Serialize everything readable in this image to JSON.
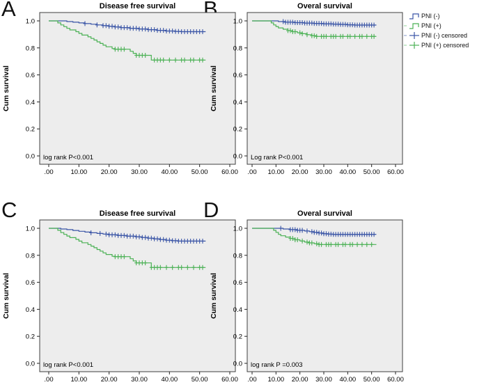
{
  "figure": {
    "colors": {
      "pni_neg": "#3a55a6",
      "pni_pos": "#4bb155",
      "plot_bg": "#ededed",
      "plot_border": "#3f3f3f",
      "text": "#000000"
    },
    "legend": {
      "position": "top-right-outside",
      "items": [
        {
          "label": "PNI (-)",
          "symbol": "step",
          "color_key": "pni_neg",
          "lead_dash": false
        },
        {
          "label": "PNI (+)",
          "symbol": "step",
          "color_key": "pni_pos",
          "lead_dash": true
        },
        {
          "label": "PNI (-) censored",
          "symbol": "plus",
          "color_key": "pni_neg",
          "lead_dash": true
        },
        {
          "label": "PNI (+) censored",
          "symbol": "plus",
          "color_key": "pni_pos",
          "lead_dash": true
        }
      ]
    }
  },
  "chart_data": [
    {
      "type": "line",
      "subtype": "kaplan-meier-step",
      "panel": "A",
      "title": "Disease free survival",
      "p_label": "log rank P<0.001",
      "xlabel": "",
      "ylabel": "Cum survival",
      "xlim": [
        -3,
        62
      ],
      "ylim": [
        -0.06,
        1.06
      ],
      "x_ticks": [
        0,
        10,
        20,
        30,
        40,
        50,
        60
      ],
      "x_tick_labels": [
        ".00",
        "10.00",
        "20.00",
        "30.00",
        "40.00",
        "50.00",
        "60.00"
      ],
      "y_ticks": [
        0,
        0.2,
        0.4,
        0.6,
        0.8,
        1.0
      ],
      "y_tick_labels": [
        "0.0",
        "0.2",
        "0.4",
        "0.6",
        "0.8",
        "1.0"
      ],
      "grid": false,
      "series": [
        {
          "name": "PNI (-)",
          "color_key": "pni_neg",
          "steps": [
            [
              0,
              1
            ],
            [
              4,
              1
            ],
            [
              6,
              0.995
            ],
            [
              8,
              0.99
            ],
            [
              10,
              0.985
            ],
            [
              12,
              0.98
            ],
            [
              14,
              0.975
            ],
            [
              16,
              0.97
            ],
            [
              18,
              0.965
            ],
            [
              20,
              0.96
            ],
            [
              22,
              0.955
            ],
            [
              24,
              0.95
            ],
            [
              27,
              0.945
            ],
            [
              30,
              0.94
            ],
            [
              33,
              0.935
            ],
            [
              36,
              0.93
            ],
            [
              39,
              0.925
            ],
            [
              42,
              0.922
            ],
            [
              44,
              0.92
            ],
            [
              52,
              0.92
            ]
          ],
          "censored_x": [
            12,
            16,
            18,
            19,
            20,
            21,
            22,
            23,
            24,
            25,
            26,
            27,
            28,
            29,
            30,
            31,
            32,
            33,
            34,
            35,
            36,
            37,
            38,
            39,
            40,
            41,
            42,
            43,
            44,
            45,
            46,
            47,
            48,
            49,
            50,
            51
          ]
        },
        {
          "name": "PNI (+)",
          "color_key": "pni_pos",
          "steps": [
            [
              0,
              1
            ],
            [
              2,
              1
            ],
            [
              3,
              0.985
            ],
            [
              4,
              0.97
            ],
            [
              5,
              0.957
            ],
            [
              6,
              0.945
            ],
            [
              7,
              0.933
            ],
            [
              9,
              0.92
            ],
            [
              10,
              0.907
            ],
            [
              11,
              0.895
            ],
            [
              13,
              0.882
            ],
            [
              14,
              0.87
            ],
            [
              15,
              0.858
            ],
            [
              16,
              0.845
            ],
            [
              17,
              0.833
            ],
            [
              18,
              0.82
            ],
            [
              19,
              0.808
            ],
            [
              21,
              0.795
            ],
            [
              22,
              0.79
            ],
            [
              26,
              0.79
            ],
            [
              27,
              0.775
            ],
            [
              28,
              0.76
            ],
            [
              29,
              0.745
            ],
            [
              33,
              0.745
            ],
            [
              34,
              0.71
            ],
            [
              52,
              0.71
            ]
          ],
          "censored_x": [
            22,
            23,
            24,
            25,
            29,
            30,
            31,
            32,
            35,
            36,
            37,
            38,
            40,
            42,
            44,
            45,
            47,
            48,
            50,
            51
          ]
        }
      ]
    },
    {
      "type": "line",
      "subtype": "kaplan-meier-step",
      "panel": "B",
      "title": "Overal survival",
      "p_label": "Log rank P<0.001",
      "xlabel": "",
      "ylabel": "Cum survival",
      "xlim": [
        -3,
        62
      ],
      "ylim": [
        -0.06,
        1.06
      ],
      "x_ticks": [
        0,
        10,
        20,
        30,
        40,
        50,
        60
      ],
      "x_tick_labels": [
        ".00",
        "10.00",
        "20.00",
        "30.00",
        "40.00",
        "50.00",
        "60.00"
      ],
      "y_ticks": [
        0,
        0.2,
        0.4,
        0.6,
        0.8,
        1.0
      ],
      "y_tick_labels": [
        "0.0",
        "0.2",
        "0.4",
        "0.6",
        "0.8",
        "1.0"
      ],
      "grid": false,
      "series": [
        {
          "name": "PNI (-)",
          "color_key": "pni_neg",
          "steps": [
            [
              0,
              1
            ],
            [
              9,
              1
            ],
            [
              11,
              0.995
            ],
            [
              14,
              0.99
            ],
            [
              18,
              0.987
            ],
            [
              22,
              0.984
            ],
            [
              26,
              0.981
            ],
            [
              30,
              0.978
            ],
            [
              34,
              0.976
            ],
            [
              37,
              0.974
            ],
            [
              40,
              0.971
            ],
            [
              43,
              0.969
            ],
            [
              52,
              0.969
            ]
          ],
          "censored_x": [
            13,
            14,
            15,
            16,
            17,
            18,
            19,
            20,
            21,
            22,
            23,
            24,
            25,
            26,
            27,
            28,
            29,
            30,
            31,
            32,
            33,
            34,
            35,
            36,
            37,
            38,
            39,
            40,
            41,
            42,
            43,
            44,
            45,
            46,
            47,
            48,
            49,
            50,
            51
          ]
        },
        {
          "name": "PNI (+)",
          "color_key": "pni_pos",
          "steps": [
            [
              0,
              1
            ],
            [
              7,
              1
            ],
            [
              8,
              0.985
            ],
            [
              9,
              0.97
            ],
            [
              10,
              0.958
            ],
            [
              11,
              0.948
            ],
            [
              13,
              0.938
            ],
            [
              15,
              0.928
            ],
            [
              17,
              0.92
            ],
            [
              19,
              0.912
            ],
            [
              21,
              0.905
            ],
            [
              23,
              0.898
            ],
            [
              25,
              0.89
            ],
            [
              27,
              0.885
            ],
            [
              52,
              0.885
            ]
          ],
          "censored_x": [
            15,
            16,
            17,
            18,
            20,
            21,
            23,
            25,
            26,
            27,
            29,
            30,
            31,
            33,
            34,
            35,
            37,
            38,
            40,
            41,
            43,
            45,
            46,
            48,
            50,
            51
          ]
        }
      ]
    },
    {
      "type": "line",
      "subtype": "kaplan-meier-step",
      "panel": "C",
      "title": "Disease free survival",
      "p_label": "log rank P<0.001",
      "xlabel": "",
      "ylabel": "Cum survival",
      "xlim": [
        -3,
        62
      ],
      "ylim": [
        -0.06,
        1.06
      ],
      "x_ticks": [
        0,
        10,
        20,
        30,
        40,
        50,
        60
      ],
      "x_tick_labels": [
        ".00",
        "10.00",
        "20.00",
        "30.00",
        "40.00",
        "50.00",
        "60.00"
      ],
      "y_ticks": [
        0,
        0.2,
        0.4,
        0.6,
        0.8,
        1.0
      ],
      "y_tick_labels": [
        "0.0",
        "0.2",
        "0.4",
        "0.6",
        "0.8",
        "1.0"
      ],
      "grid": false,
      "series": [
        {
          "name": "PNI (-)",
          "color_key": "pni_neg",
          "steps": [
            [
              0,
              1
            ],
            [
              3,
              1
            ],
            [
              4,
              0.995
            ],
            [
              6,
              0.99
            ],
            [
              8,
              0.984
            ],
            [
              10,
              0.978
            ],
            [
              12,
              0.972
            ],
            [
              14,
              0.967
            ],
            [
              16,
              0.962
            ],
            [
              18,
              0.957
            ],
            [
              20,
              0.952
            ],
            [
              23,
              0.947
            ],
            [
              26,
              0.942
            ],
            [
              29,
              0.937
            ],
            [
              31,
              0.932
            ],
            [
              33,
              0.927
            ],
            [
              35,
              0.922
            ],
            [
              37,
              0.917
            ],
            [
              39,
              0.912
            ],
            [
              41,
              0.908
            ],
            [
              43,
              0.905
            ],
            [
              52,
              0.905
            ]
          ],
          "censored_x": [
            14,
            17,
            19,
            20,
            21,
            22,
            23,
            24,
            25,
            26,
            27,
            28,
            29,
            30,
            31,
            32,
            33,
            34,
            35,
            36,
            37,
            38,
            39,
            40,
            41,
            42,
            43,
            44,
            45,
            46,
            47,
            48,
            49,
            50,
            51
          ]
        },
        {
          "name": "PNI (+)",
          "color_key": "pni_pos",
          "steps": [
            [
              0,
              1
            ],
            [
              2,
              1
            ],
            [
              3,
              0.985
            ],
            [
              4,
              0.968
            ],
            [
              5,
              0.955
            ],
            [
              6,
              0.943
            ],
            [
              7,
              0.931
            ],
            [
              9,
              0.918
            ],
            [
              10,
              0.905
            ],
            [
              11,
              0.893
            ],
            [
              13,
              0.88
            ],
            [
              14,
              0.868
            ],
            [
              15,
              0.856
            ],
            [
              16,
              0.843
            ],
            [
              17,
              0.831
            ],
            [
              18,
              0.818
            ],
            [
              19,
              0.806
            ],
            [
              21,
              0.793
            ],
            [
              22,
              0.79
            ],
            [
              26,
              0.79
            ],
            [
              27,
              0.775
            ],
            [
              28,
              0.758
            ],
            [
              29,
              0.744
            ],
            [
              33,
              0.744
            ],
            [
              34,
              0.71
            ],
            [
              52,
              0.71
            ]
          ],
          "censored_x": [
            22,
            23,
            24,
            25,
            29,
            30,
            31,
            32,
            34,
            35,
            36,
            37,
            39,
            41,
            43,
            44,
            46,
            48,
            50,
            51
          ]
        }
      ]
    },
    {
      "type": "line",
      "subtype": "kaplan-meier-step",
      "panel": "D",
      "title": "Overal survival",
      "p_label": "log rank P =0.003",
      "xlabel": "",
      "ylabel": "Cum survival",
      "xlim": [
        -3,
        62
      ],
      "ylim": [
        -0.06,
        1.06
      ],
      "x_ticks": [
        0,
        10,
        20,
        30,
        40,
        50,
        60
      ],
      "x_tick_labels": [
        ".00",
        "10.00",
        "20.00",
        "30.00",
        "40.00",
        "50.00",
        "60.00"
      ],
      "y_ticks": [
        0,
        0.2,
        0.4,
        0.6,
        0.8,
        1.0
      ],
      "y_tick_labels": [
        "0.0",
        "0.2",
        "0.4",
        "0.6",
        "0.8",
        "1.0"
      ],
      "grid": false,
      "series": [
        {
          "name": "PNI (-)",
          "color_key": "pni_neg",
          "steps": [
            [
              0,
              1
            ],
            [
              11,
              1
            ],
            [
              13,
              0.995
            ],
            [
              16,
              0.99
            ],
            [
              19,
              0.985
            ],
            [
              22,
              0.98
            ],
            [
              24,
              0.975
            ],
            [
              26,
              0.97
            ],
            [
              28,
              0.965
            ],
            [
              30,
              0.96
            ],
            [
              32,
              0.957
            ],
            [
              34,
              0.955
            ],
            [
              52,
              0.955
            ]
          ],
          "censored_x": [
            12,
            16,
            17,
            18,
            19,
            20,
            21,
            23,
            25,
            26,
            27,
            28,
            29,
            30,
            31,
            32,
            33,
            34,
            35,
            36,
            37,
            38,
            39,
            40,
            41,
            42,
            43,
            44,
            45,
            46,
            47,
            48,
            49,
            50,
            51
          ]
        },
        {
          "name": "PNI (+)",
          "color_key": "pni_pos",
          "steps": [
            [
              0,
              1
            ],
            [
              8,
              1
            ],
            [
              9,
              0.985
            ],
            [
              10,
              0.97
            ],
            [
              11,
              0.955
            ],
            [
              12,
              0.945
            ],
            [
              14,
              0.935
            ],
            [
              16,
              0.925
            ],
            [
              18,
              0.915
            ],
            [
              20,
              0.906
            ],
            [
              22,
              0.898
            ],
            [
              24,
              0.892
            ],
            [
              26,
              0.886
            ],
            [
              28,
              0.88
            ],
            [
              52,
              0.88
            ]
          ],
          "censored_x": [
            16,
            17,
            18,
            19,
            21,
            23,
            24,
            25,
            27,
            28,
            29,
            31,
            32,
            33,
            35,
            36,
            38,
            39,
            41,
            42,
            44,
            46,
            48,
            50
          ]
        }
      ]
    }
  ]
}
